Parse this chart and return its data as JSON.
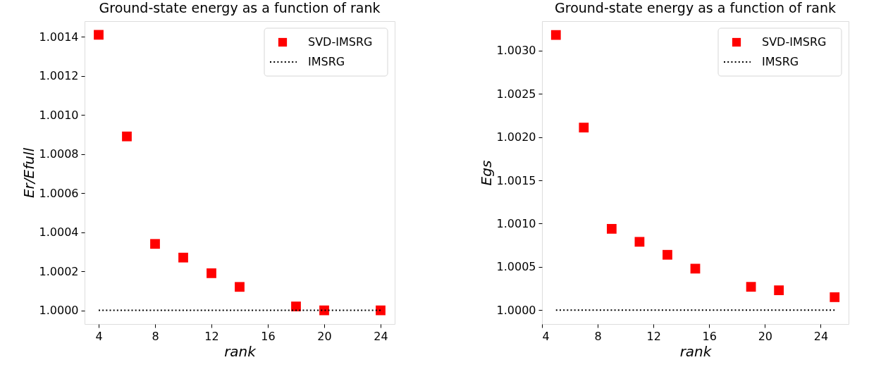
{
  "chart_data": [
    {
      "type": "scatter",
      "title": "Ground-state energy as a function of rank",
      "xlabel": "rank",
      "ylabel": "Er/Efull",
      "xlim": [
        3,
        25
      ],
      "xticks": [
        4,
        8,
        12,
        16,
        20,
        24
      ],
      "ylim": [
        0.99993,
        1.00148
      ],
      "yticks": [
        {
          "value": 1.0,
          "label": "1.0000"
        },
        1.0002,
        1.0004,
        1.0006,
        1.0008,
        {
          "value": 1.001,
          "label": "1.0010"
        },
        1.0012,
        1.0014
      ],
      "grid": false,
      "legend": "top right",
      "series": [
        {
          "name": "SVD-IMSRG",
          "marker": "square",
          "color": "#ff0000",
          "x": [
            4,
            6,
            8,
            10,
            12,
            14,
            18,
            20,
            24
          ],
          "values": [
            1.00141,
            1.00089,
            1.00034,
            1.00027,
            1.00019,
            1.00012,
            1.00002,
            1.0,
            1.0
          ]
        },
        {
          "name": "IMSRG",
          "type": "line",
          "line_style": "dotted",
          "color": "#000000",
          "x": [
            4,
            24
          ],
          "values": [
            1.0,
            1.0
          ]
        }
      ]
    },
    {
      "type": "scatter",
      "title": "Ground-state energy as a function of rank",
      "xlabel": "rank",
      "ylabel": "Egs",
      "xlim": [
        4,
        26
      ],
      "xticks": [
        4,
        8,
        12,
        16,
        20,
        24
      ],
      "ylim": [
        0.99984,
        1.00334
      ],
      "yticks": [
        {
          "value": 1.0,
          "label": "1.0000"
        },
        1.0005,
        {
          "value": 1.001,
          "label": "1.0010"
        },
        1.0015,
        {
          "value": 1.002,
          "label": "1.0020"
        },
        1.0025,
        {
          "value": 1.003,
          "label": "1.0030"
        }
      ],
      "grid": false,
      "legend": "top right",
      "series": [
        {
          "name": "SVD-IMSRG",
          "marker": "square",
          "color": "#ff0000",
          "x": [
            5,
            7,
            9,
            11,
            13,
            15,
            19,
            21,
            25
          ],
          "values": [
            1.00318,
            1.00211,
            1.00094,
            1.00079,
            1.00064,
            1.00048,
            1.00027,
            1.00023,
            1.00015
          ]
        },
        {
          "name": "IMSRG",
          "type": "line",
          "line_style": "dotted",
          "color": "#000000",
          "x": [
            5,
            25
          ],
          "values": [
            1.0,
            1.0
          ]
        }
      ]
    }
  ]
}
